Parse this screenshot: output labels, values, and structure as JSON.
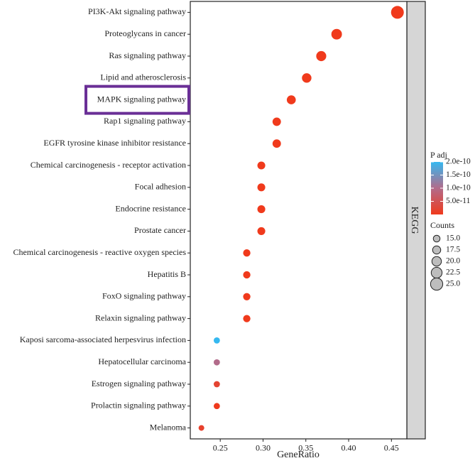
{
  "chart_data": {
    "type": "scatter",
    "xlabel": "GeneRatio",
    "ylabel": "",
    "xlim": [
      0.215,
      0.468
    ],
    "xticks": [
      0.25,
      0.3,
      0.35,
      0.4,
      0.45
    ],
    "xtick_labels": [
      "0.25",
      "0.30",
      "0.35",
      "0.40",
      "0.45"
    ],
    "facet_label": "KEGG",
    "grid": false,
    "highlighted_category": "MAPK signaling pathway",
    "highlight_color": "#6a2f96",
    "categories": [
      "PI3K-Akt signaling pathway",
      "Proteoglycans in cancer",
      "Ras signaling pathway",
      "Lipid and atherosclerosis",
      "MAPK signaling pathway",
      "Rap1 signaling pathway",
      "EGFR tyrosine kinase inhibitor resistance",
      "Chemical carcinogenesis - receptor activation",
      "Focal adhesion",
      "Endocrine resistance",
      "Prostate cancer",
      "Chemical carcinogenesis - reactive oxygen species",
      "Hepatitis B",
      "FoxO signaling pathway",
      "Relaxin signaling pathway",
      "Kaposi sarcoma-associated herpesvirus infection",
      "Hepatocellular carcinoma",
      "Estrogen signaling pathway",
      "Prolactin signaling pathway",
      "Melanoma"
    ],
    "gene_ratio": [
      0.457,
      0.386,
      0.368,
      0.351,
      0.333,
      0.316,
      0.316,
      0.298,
      0.298,
      0.298,
      0.298,
      0.281,
      0.281,
      0.281,
      0.281,
      0.246,
      0.246,
      0.246,
      0.246,
      0.228
    ],
    "counts": [
      26,
      22,
      21,
      20,
      19,
      18,
      18,
      17,
      17,
      17,
      17,
      16,
      16,
      16,
      16,
      14,
      14,
      14,
      14,
      13
    ],
    "p_adj": [
      1e-13,
      1e-13,
      1e-13,
      1e-13,
      1e-13,
      1e-13,
      1e-13,
      1e-13,
      1e-13,
      1e-13,
      1e-13,
      1e-13,
      1e-13,
      1e-13,
      1e-13,
      2e-10,
      1e-10,
      2e-11,
      1e-12,
      1.5e-11
    ],
    "color_legend": {
      "title": "P adj",
      "labels": [
        "2.0e-10",
        "1.5e-10",
        "1.0e-10",
        "5.0e-11"
      ],
      "values": [
        2e-10,
        1.5e-10,
        1e-10,
        5e-11
      ],
      "range": [
        0,
        2e-10
      ],
      "low_color": "#f03a1c",
      "mid_color": "#b26b8a",
      "high_color": "#35b8f0"
    },
    "size_legend": {
      "title": "Counts",
      "labels": [
        "15.0",
        "17.5",
        "20.0",
        "22.5",
        "25.0"
      ],
      "values": [
        15.0,
        17.5,
        20.0,
        22.5,
        25.0
      ]
    }
  }
}
